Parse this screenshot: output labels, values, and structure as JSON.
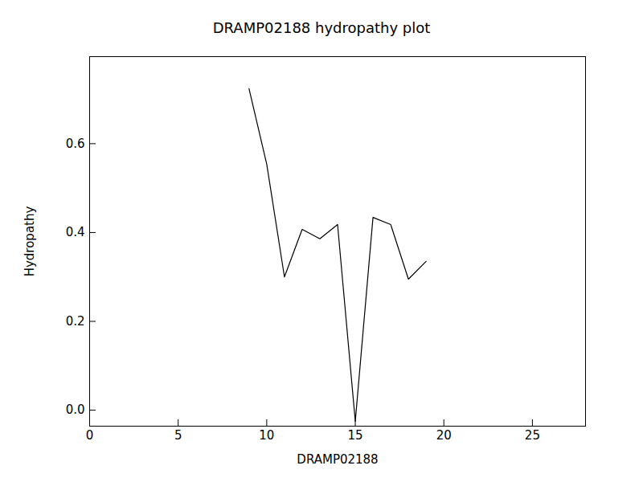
{
  "chart_data": {
    "type": "line",
    "title": "DRAMP02188 hydropathy plot",
    "x_label": "DRAMP02188",
    "y_label": "Hydropathy",
    "x": [
      9,
      10,
      11,
      12,
      13,
      14,
      15,
      16,
      17,
      18,
      19
    ],
    "values": [
      0.724,
      0.554,
      0.3,
      0.407,
      0.386,
      0.418,
      -0.025,
      0.434,
      0.418,
      0.295,
      0.335
    ],
    "color": "#000000",
    "xlim": [
      0,
      28
    ],
    "xticks": [
      0,
      5,
      10,
      15,
      20,
      25
    ],
    "ylim": [
      -0.036,
      0.796
    ],
    "yticks": [
      {
        "value": 0,
        "label": "0.0"
      },
      0.2,
      0.4,
      0.6
    ],
    "grid": false
  }
}
